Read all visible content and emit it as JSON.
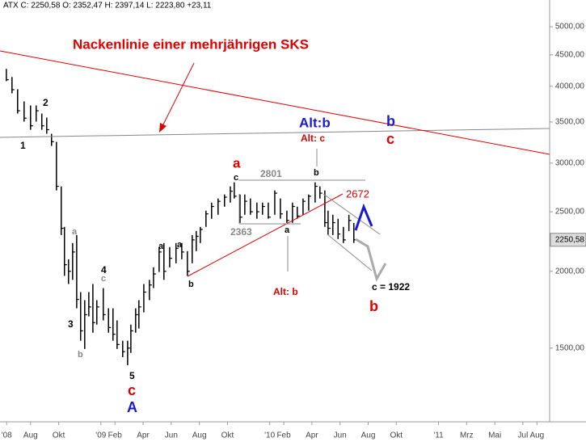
{
  "chart_data": {
    "type": "ohlc",
    "header": "ATX C: 2250,58 O: 2352,47 H: 2397,14 L: 2223,80 +23,11",
    "last_label": "2250,58",
    "log_scale": true,
    "color": "#000000",
    "x": [
      0.28,
      0.68,
      1.08,
      1.54,
      2.0,
      2.4,
      2.8,
      3.15,
      3.49,
      3.84,
      4.18,
      4.41,
      4.7,
      4.99,
      5.28,
      5.56,
      5.85,
      6.14,
      6.43,
      6.71,
      7.17,
      7.54,
      7.86,
      8.15,
      8.55,
      8.9,
      9.13,
      9.47,
      9.7,
      10.05,
      10.45,
      10.74,
      11.14,
      11.48,
      11.89,
      12.34,
      12.75,
      13.15,
      13.49,
      13.78,
      14.07,
      14.47,
      14.87,
      15.33,
      15.79,
      16.2,
      16.48,
      16.89,
      17.23,
      17.63,
      18.09,
      18.49,
      18.9,
      19.36,
      19.76,
      20.22,
      20.62,
      20.96,
      21.37,
      21.77,
      22.23,
      22.57,
      22.92,
      23.15,
      23.49,
      23.86,
      24.24,
      24.63,
      24.98
    ],
    "high": [
      4270,
      4141,
      3956,
      3780,
      3723,
      3723,
      3612,
      3558,
      3348,
      3248,
      2749,
      2362,
      2092,
      2223,
      2291,
      1850,
      1795,
      1850,
      1907,
      1795,
      1878,
      1741,
      1741,
      1664,
      1542,
      1542,
      1638,
      1741,
      1795,
      1907,
      1937,
      2030,
      2190,
      2223,
      2190,
      2223,
      2223,
      2157,
      2291,
      2326,
      2362,
      2510,
      2587,
      2627,
      2667,
      2749,
      2791,
      2667,
      2667,
      2627,
      2587,
      2587,
      2587,
      2708,
      2627,
      2510,
      2587,
      2548,
      2627,
      2667,
      2791,
      2749,
      2708,
      2510,
      2472,
      2435,
      2362,
      2472,
      2397.14
    ],
    "low": [
      4078,
      3896,
      3612,
      3504,
      3399,
      3504,
      3399,
      3348,
      3199,
      2708,
      2291,
      1966,
      1907,
      1937,
      1741,
      1542,
      1495,
      1689,
      1589,
      1638,
      1664,
      1589,
      1542,
      1495,
      1450,
      1407,
      1473,
      1589,
      1614,
      1715,
      1795,
      1878,
      1995,
      1937,
      2030,
      2061,
      2092,
      1966,
      2061,
      2157,
      2223,
      2362,
      2435,
      2472,
      2548,
      2587,
      2627,
      2398,
      2472,
      2472,
      2435,
      2472,
      2435,
      2472,
      2435,
      2398,
      2398,
      2435,
      2472,
      2510,
      2587,
      2627,
      2362,
      2291,
      2291,
      2257,
      2223,
      2326,
      2223.8
    ],
    "close": [
      4100,
      3950,
      3650,
      3550,
      3450,
      3650,
      3450,
      3400,
      3250,
      2750,
      2350,
      2050,
      2000,
      2150,
      1800,
      1600,
      1700,
      1750,
      1650,
      1750,
      1700,
      1620,
      1580,
      1520,
      1480,
      1500,
      1600,
      1700,
      1750,
      1850,
      1900,
      1980,
      2150,
      2000,
      2100,
      2180,
      2150,
      2000,
      2250,
      2280,
      2340,
      2480,
      2550,
      2600,
      2640,
      2700,
      2650,
      2450,
      2600,
      2500,
      2500,
      2550,
      2450,
      2680,
      2480,
      2420,
      2550,
      2460,
      2600,
      2650,
      2750,
      2680,
      2400,
      2350,
      2400,
      2300,
      2250,
      2420,
      2250.58
    ],
    "xlim": [
      0,
      38.9
    ],
    "ylim": [
      1138,
      5527
    ],
    "xticks": [
      {
        "value": 0.3,
        "label": "'08"
      },
      {
        "value": 2,
        "label": "Aug"
      },
      {
        "value": 4,
        "label": "Okt"
      },
      {
        "value": 7,
        "label": "'09"
      },
      {
        "value": 8,
        "label": "Feb"
      },
      {
        "value": 10,
        "label": "Apr"
      },
      {
        "value": 12,
        "label": "Jun"
      },
      {
        "value": 14,
        "label": "Aug"
      },
      {
        "value": 16,
        "label": "Okt"
      },
      {
        "value": 19,
        "label": "'10"
      },
      {
        "value": 20,
        "label": "Feb"
      },
      {
        "value": 22,
        "label": "Apr"
      },
      {
        "value": 24,
        "label": "Jun"
      },
      {
        "value": 26,
        "label": "Aug"
      },
      {
        "value": 28,
        "label": "Okt"
      },
      {
        "value": 31,
        "label": "'11"
      },
      {
        "value": 33,
        "label": "Mrz"
      },
      {
        "value": 35,
        "label": "Mai"
      },
      {
        "value": 37,
        "label": "Jul"
      },
      {
        "value": 38,
        "label": "Aug"
      }
    ],
    "yticks": [
      {
        "value": 1500,
        "label": "1500,00"
      },
      {
        "value": 2000,
        "label": "2000,00"
      },
      {
        "value": 2500,
        "label": "2500,00"
      },
      {
        "value": 3000,
        "label": "3000,00"
      },
      {
        "value": 3500,
        "label": "3500,00"
      },
      {
        "value": 4000,
        "label": "4000,00"
      },
      {
        "value": 4500,
        "label": "4500,00"
      },
      {
        "value": 5000,
        "label": "5000,00"
      }
    ],
    "annotations": [
      "Nackenlinie einer mehrjährigen SKS",
      "Alt:b",
      "Alt: c",
      "b",
      "c",
      "a",
      "c",
      "2801",
      "b",
      "2672",
      "2363",
      "a",
      "Alt: b",
      "c = 1922",
      "b",
      "2",
      "1",
      "a",
      "4",
      "c",
      "3",
      "b",
      "a",
      "a",
      "b",
      "5",
      "c",
      "A"
    ]
  }
}
